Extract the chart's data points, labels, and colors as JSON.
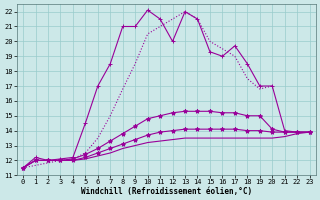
{
  "xlabel": "Windchill (Refroidissement éolien,°C)",
  "background_color": "#cce8e8",
  "grid_color": "#99cccc",
  "line_color": "#990099",
  "xlim": [
    -0.5,
    23.5
  ],
  "ylim": [
    11,
    22.5
  ],
  "xticks": [
    0,
    1,
    2,
    3,
    4,
    5,
    6,
    7,
    8,
    9,
    10,
    11,
    12,
    13,
    14,
    15,
    16,
    17,
    18,
    19,
    20,
    21,
    22,
    23
  ],
  "yticks": [
    11,
    12,
    13,
    14,
    15,
    16,
    17,
    18,
    19,
    20,
    21,
    22
  ],
  "lines": [
    {
      "x": [
        0,
        1,
        2,
        3,
        4,
        5,
        6,
        7,
        8,
        9,
        10,
        11,
        12,
        13,
        14,
        15,
        16,
        17,
        18,
        19,
        20,
        21,
        22,
        23
      ],
      "y": [
        11.5,
        12.2,
        12.0,
        12.1,
        12.2,
        14.5,
        17.0,
        18.5,
        21.0,
        21.0,
        22.1,
        21.5,
        20.0,
        22.0,
        21.5,
        19.3,
        19.0,
        19.7,
        18.5,
        17.0,
        17.0,
        14.0,
        13.9,
        13.9
      ],
      "style": "-",
      "marker": "+"
    },
    {
      "x": [
        0,
        3,
        4,
        5,
        6,
        7,
        8,
        9,
        10,
        11,
        12,
        13,
        14,
        15,
        16,
        17,
        18,
        19,
        20
      ],
      "y": [
        11.5,
        12.0,
        12.1,
        12.5,
        13.5,
        15.0,
        16.8,
        18.5,
        20.5,
        21.0,
        21.5,
        22.0,
        21.5,
        20.0,
        19.5,
        19.0,
        17.5,
        16.8,
        17.0
      ],
      "style": ":",
      "marker": null
    },
    {
      "x": [
        0,
        1,
        2,
        3,
        4,
        5,
        6,
        7,
        8,
        9,
        10,
        11,
        12,
        13,
        14,
        15,
        16,
        17,
        18,
        19,
        20,
        21,
        22,
        23
      ],
      "y": [
        11.5,
        12.0,
        12.0,
        12.0,
        12.1,
        12.4,
        12.8,
        13.3,
        13.8,
        14.3,
        14.8,
        15.0,
        15.2,
        15.3,
        15.3,
        15.3,
        15.2,
        15.2,
        15.0,
        15.0,
        14.1,
        13.9,
        13.9,
        13.9
      ],
      "style": "-",
      "marker": "*"
    },
    {
      "x": [
        0,
        1,
        2,
        3,
        4,
        5,
        6,
        7,
        8,
        9,
        10,
        11,
        12,
        13,
        14,
        15,
        16,
        17,
        18,
        19,
        20,
        21,
        22,
        23
      ],
      "y": [
        11.5,
        12.0,
        12.0,
        12.0,
        12.0,
        12.2,
        12.5,
        12.8,
        13.1,
        13.4,
        13.7,
        13.9,
        14.0,
        14.1,
        14.1,
        14.1,
        14.1,
        14.1,
        14.0,
        14.0,
        13.9,
        13.9,
        13.9,
        13.9
      ],
      "style": "-",
      "marker": "*"
    },
    {
      "x": [
        0,
        1,
        2,
        3,
        4,
        5,
        6,
        7,
        8,
        9,
        10,
        11,
        12,
        13,
        14,
        15,
        16,
        17,
        18,
        19,
        20,
        21,
        22,
        23
      ],
      "y": [
        11.5,
        12.0,
        12.0,
        12.0,
        12.0,
        12.1,
        12.3,
        12.5,
        12.8,
        13.0,
        13.2,
        13.3,
        13.4,
        13.5,
        13.5,
        13.5,
        13.5,
        13.5,
        13.5,
        13.5,
        13.5,
        13.6,
        13.8,
        13.9
      ],
      "style": "-",
      "marker": null
    }
  ],
  "marker_size": 3,
  "linewidth": 0.8,
  "font_family": "monospace",
  "tick_fontsize": 5,
  "xlabel_fontsize": 5.5
}
